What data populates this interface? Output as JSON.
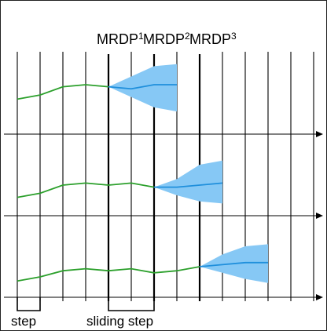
{
  "labels": {
    "mrdp": [
      {
        "base": "MRDP",
        "sub": "1"
      },
      {
        "base": "MRDP",
        "sub": "2"
      },
      {
        "base": "MRDP",
        "sub": "3"
      }
    ],
    "step": "step",
    "sliding_step": "sliding step"
  },
  "colors": {
    "green_series": "#2ca02c",
    "forecast_line": "#1f8fdc",
    "forecast_band": "#86c8f5",
    "grid": "#000000"
  },
  "rows": [
    {
      "history": [
        17,
        19,
        23,
        24,
        23
      ],
      "forecast_start_step": 4,
      "forecast": [
        23,
        22,
        24,
        24
      ],
      "band_upper": [
        23,
        28,
        33,
        34
      ],
      "band_lower": [
        23,
        18,
        13,
        11
      ]
    },
    {
      "history": [
        9,
        11,
        15,
        16,
        15,
        16,
        14
      ],
      "forecast_start_step": 6,
      "forecast": [
        14,
        14,
        15,
        16
      ],
      "band_upper": [
        14,
        18,
        25,
        27
      ],
      "band_lower": [
        14,
        10,
        7,
        6
      ]
    },
    {
      "history": [
        8,
        10,
        13,
        14,
        13,
        14,
        12,
        13,
        15
      ],
      "forecast_start_step": 8,
      "forecast": [
        15,
        16,
        17,
        17
      ],
      "band_upper": [
        15,
        21,
        25,
        26
      ],
      "band_lower": [
        15,
        12,
        9,
        7
      ]
    }
  ]
}
